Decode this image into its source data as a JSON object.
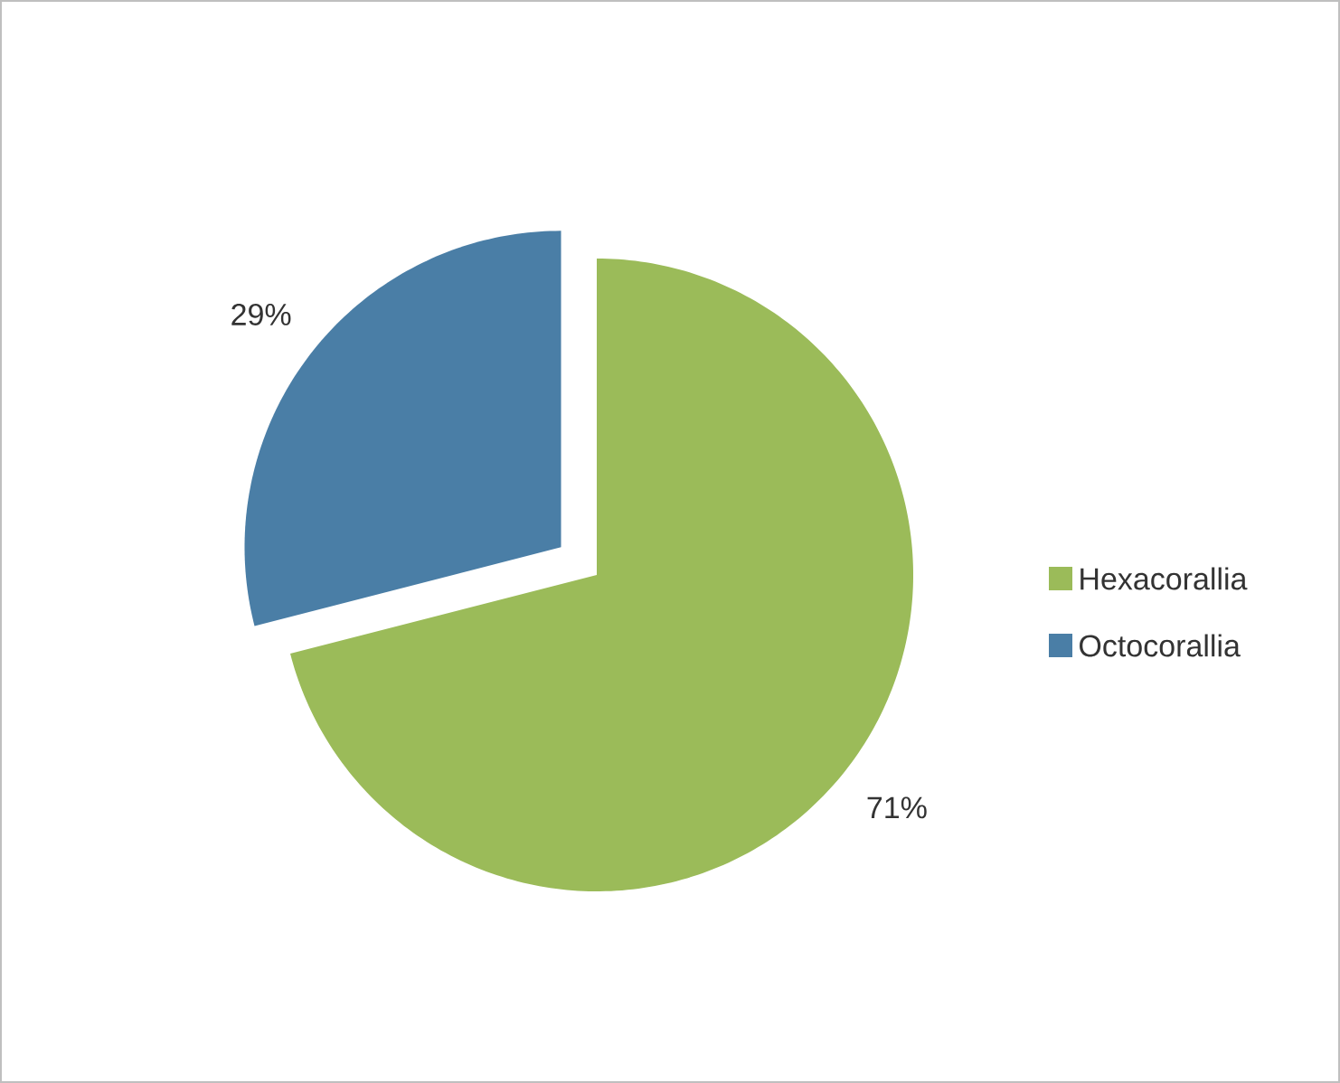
{
  "chart_data": {
    "type": "pie",
    "categories": [
      "Hexacorallia",
      "Octocorallia"
    ],
    "values": [
      71,
      29
    ],
    "value_labels": [
      "71%",
      "29%"
    ],
    "colors": [
      "#9bbb59",
      "#4a7ea6"
    ],
    "legend": "right"
  }
}
